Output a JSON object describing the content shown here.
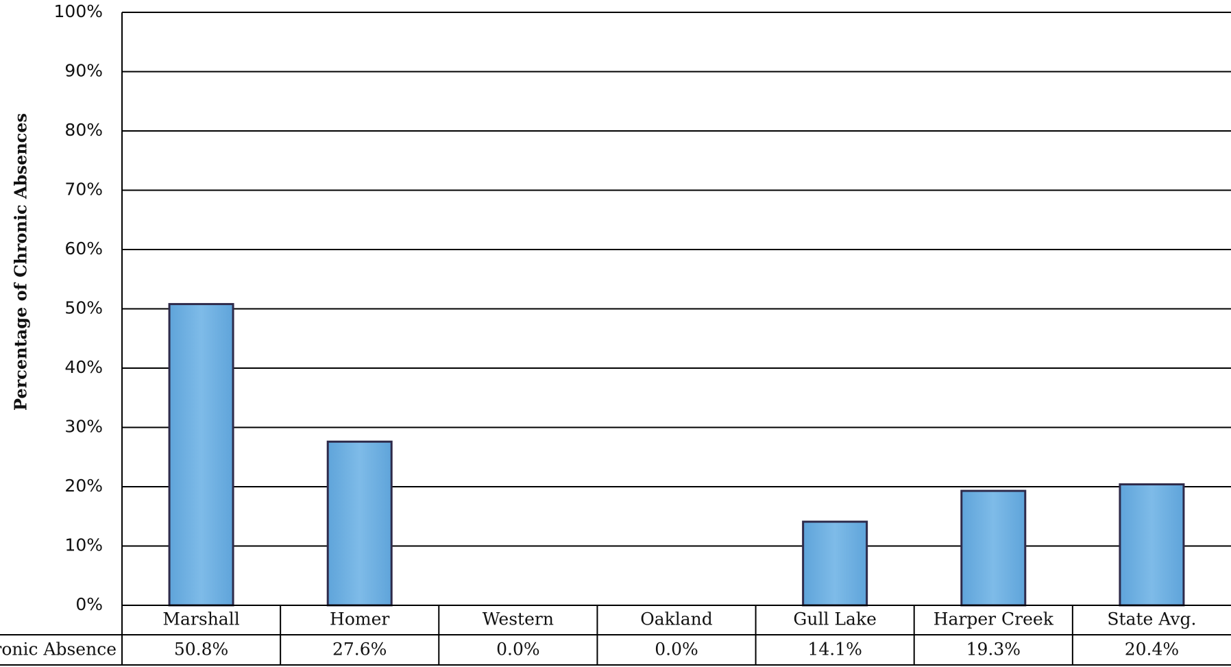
{
  "chart_data": {
    "type": "bar",
    "categories": [
      "Marshall",
      "Homer",
      "Western",
      "Oakland",
      "Gull Lake",
      "Harper Creek",
      "State Avg."
    ],
    "values": [
      50.8,
      27.6,
      0.0,
      0.0,
      14.1,
      19.3,
      20.4
    ],
    "value_labels": [
      "50.8%",
      "27.6%",
      "0.0%",
      "0.0%",
      "14.1%",
      "19.3%",
      "20.4%"
    ],
    "series_name": "Chronic Absence",
    "table_row_label": "Chronic Absence",
    "ylabel": "Percentage of Chronic Absences",
    "ylim": [
      0,
      100
    ],
    "y_ticks": [
      "0%",
      "10%",
      "20%",
      "30%",
      "40%",
      "50%",
      "60%",
      "70%",
      "80%",
      "90%",
      "100%"
    ],
    "grid": true,
    "legend": "none",
    "data_table": true,
    "colors": {
      "bar_fill": "#6aade0",
      "bar_edge": "#5fa4da",
      "bar_center": "#7ebbe8",
      "bar_outline": "#2e2a4a",
      "grid": "#000000"
    }
  }
}
